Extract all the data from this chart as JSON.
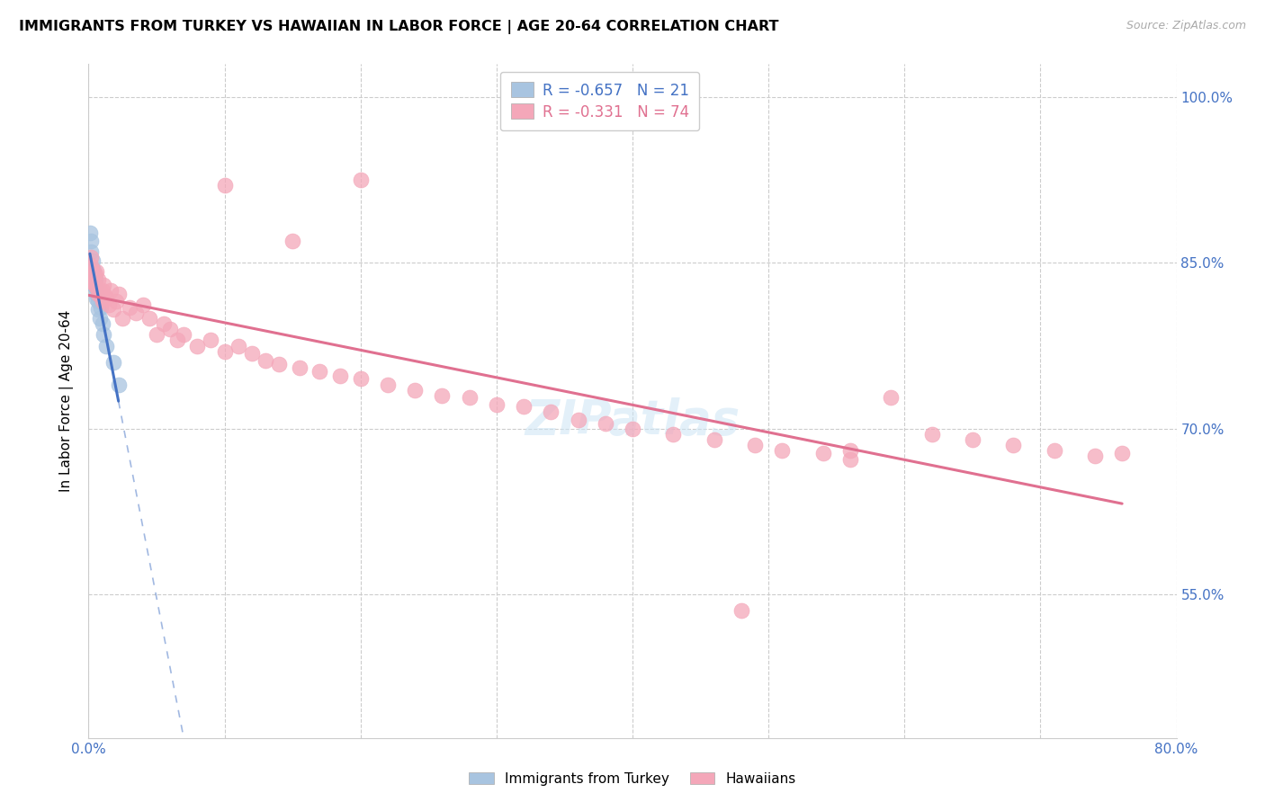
{
  "title": "IMMIGRANTS FROM TURKEY VS HAWAIIAN IN LABOR FORCE | AGE 20-64 CORRELATION CHART",
  "source": "Source: ZipAtlas.com",
  "ylabel": "In Labor Force | Age 20-64",
  "xlim": [
    0.0,
    0.8
  ],
  "ylim": [
    0.42,
    1.03
  ],
  "xticks": [
    0.0,
    0.1,
    0.2,
    0.3,
    0.4,
    0.5,
    0.6,
    0.7,
    0.8
  ],
  "xticklabels": [
    "0.0%",
    "",
    "",
    "",
    "",
    "",
    "",
    "",
    "80.0%"
  ],
  "yticks": [
    0.55,
    0.7,
    0.85,
    1.0
  ],
  "yticklabels": [
    "55.0%",
    "70.0%",
    "85.0%",
    "100.0%"
  ],
  "legend_label1": "Immigrants from Turkey",
  "legend_label2": "Hawaiians",
  "r1": -0.657,
  "n1": 21,
  "r2": -0.331,
  "n2": 74,
  "color1": "#a8c4e0",
  "color2": "#f4a7b9",
  "line_color1": "#4472c4",
  "line_color2": "#e07090",
  "tick_color": "#4472c4",
  "turkey_x": [
    0.001,
    0.002,
    0.002,
    0.003,
    0.003,
    0.004,
    0.004,
    0.004,
    0.005,
    0.005,
    0.006,
    0.006,
    0.007,
    0.007,
    0.008,
    0.009,
    0.01,
    0.011,
    0.013,
    0.018,
    0.022
  ],
  "turkey_y": [
    0.877,
    0.87,
    0.86,
    0.852,
    0.845,
    0.843,
    0.838,
    0.83,
    0.835,
    0.828,
    0.822,
    0.818,
    0.815,
    0.808,
    0.8,
    0.81,
    0.795,
    0.785,
    0.775,
    0.76,
    0.74
  ],
  "hawaii_x": [
    0.001,
    0.002,
    0.002,
    0.003,
    0.003,
    0.004,
    0.004,
    0.005,
    0.005,
    0.006,
    0.006,
    0.007,
    0.007,
    0.008,
    0.009,
    0.01,
    0.01,
    0.011,
    0.012,
    0.013,
    0.015,
    0.016,
    0.018,
    0.02,
    0.022,
    0.025,
    0.03,
    0.035,
    0.04,
    0.045,
    0.05,
    0.055,
    0.06,
    0.065,
    0.07,
    0.08,
    0.09,
    0.1,
    0.11,
    0.12,
    0.13,
    0.14,
    0.155,
    0.17,
    0.185,
    0.2,
    0.22,
    0.24,
    0.26,
    0.28,
    0.3,
    0.32,
    0.34,
    0.36,
    0.38,
    0.4,
    0.43,
    0.46,
    0.49,
    0.51,
    0.54,
    0.56,
    0.59,
    0.62,
    0.65,
    0.68,
    0.71,
    0.74,
    0.76,
    0.1,
    0.15,
    0.2,
    0.48,
    0.56
  ],
  "hawaii_y": [
    0.84,
    0.848,
    0.855,
    0.842,
    0.838,
    0.835,
    0.832,
    0.84,
    0.83,
    0.842,
    0.828,
    0.835,
    0.822,
    0.825,
    0.82,
    0.825,
    0.815,
    0.83,
    0.82,
    0.818,
    0.812,
    0.825,
    0.808,
    0.815,
    0.822,
    0.8,
    0.81,
    0.805,
    0.812,
    0.8,
    0.785,
    0.795,
    0.79,
    0.78,
    0.785,
    0.775,
    0.78,
    0.77,
    0.775,
    0.768,
    0.762,
    0.758,
    0.755,
    0.752,
    0.748,
    0.745,
    0.74,
    0.735,
    0.73,
    0.728,
    0.722,
    0.72,
    0.715,
    0.708,
    0.705,
    0.7,
    0.695,
    0.69,
    0.685,
    0.68,
    0.678,
    0.672,
    0.728,
    0.695,
    0.69,
    0.685,
    0.68,
    0.675,
    0.678,
    0.92,
    0.87,
    0.925,
    0.535,
    0.68
  ]
}
